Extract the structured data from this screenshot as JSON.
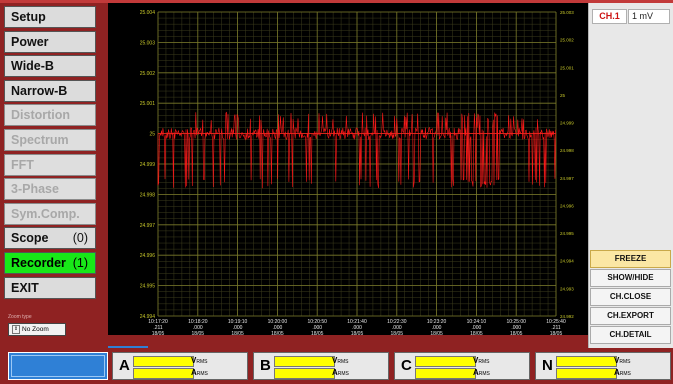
{
  "menu": [
    {
      "label": "Setup",
      "count": "",
      "state": "normal"
    },
    {
      "label": "Power",
      "count": "",
      "state": "normal"
    },
    {
      "label": "Wide-B",
      "count": "",
      "state": "normal"
    },
    {
      "label": "Narrow-B",
      "count": "",
      "state": "normal"
    },
    {
      "label": "Distortion",
      "count": "",
      "state": "disabled"
    },
    {
      "label": "Spectrum",
      "count": "",
      "state": "disabled"
    },
    {
      "label": "FFT",
      "count": "",
      "state": "disabled"
    },
    {
      "label": "3-Phase",
      "count": "",
      "state": "disabled"
    },
    {
      "label": "Sym.Comp.",
      "count": "",
      "state": "disabled"
    },
    {
      "label": "Scope",
      "count": "(0)",
      "state": "normal"
    },
    {
      "label": "Recorder",
      "count": "(1)",
      "state": "active"
    },
    {
      "label": "EXIT",
      "count": "",
      "state": "normal"
    }
  ],
  "zoom": {
    "label": "Zoom type",
    "value": "No Zoom"
  },
  "channel": {
    "tag": "CH.1",
    "scale": "1 mV"
  },
  "right_buttons": [
    {
      "label": "FREEZE",
      "highlight": true
    },
    {
      "label": "SHOW/HIDE",
      "highlight": false
    },
    {
      "label": "CH.CLOSE",
      "highlight": false
    },
    {
      "label": "CH.EXPORT",
      "highlight": false
    },
    {
      "label": "CH.DETAIL",
      "highlight": false
    }
  ],
  "phases": [
    {
      "letter": "A",
      "v": "V",
      "v_sub": "RMS",
      "a": "A",
      "a_sub": "RMS"
    },
    {
      "letter": "B",
      "v": "V",
      "v_sub": "RMS",
      "a": "A",
      "a_sub": "RMS"
    },
    {
      "letter": "C",
      "v": "V",
      "v_sub": "RMS",
      "a": "A",
      "a_sub": "RMS"
    },
    {
      "letter": "N",
      "v": "V",
      "v_sub": "RMS",
      "a": "A",
      "a_sub": "RMS"
    }
  ],
  "chart_data": {
    "type": "line",
    "title": "",
    "y_ticks": [
      "25.004",
      "25.003",
      "25.002",
      "25.001",
      "25",
      "24.999",
      "24.998",
      "24.997",
      "24.996",
      "24.995",
      "24.994"
    ],
    "y_ticks_right": [
      "25.003",
      "25.002",
      "25.001",
      "25",
      "24.999",
      "24.998",
      "24.997",
      "24.996",
      "24.995",
      "24.994",
      "24.993",
      "24.992"
    ],
    "ylim": [
      24.994,
      25.004
    ],
    "x_ticks": [
      {
        "time": "10:17:20",
        "ms": ".211",
        "date": "18/05"
      },
      {
        "time": "10:18:20",
        "ms": ".000",
        "date": "18/05"
      },
      {
        "time": "10:19:10",
        "ms": ".000",
        "date": "18/05"
      },
      {
        "time": "10:20:00",
        "ms": ".000",
        "date": "18/05"
      },
      {
        "time": "10:20:50",
        "ms": ".000",
        "date": "18/05"
      },
      {
        "time": "10:21:40",
        "ms": ".000",
        "date": "18/05"
      },
      {
        "time": "10:22:30",
        "ms": ".000",
        "date": "18/05"
      },
      {
        "time": "10:23:20",
        "ms": ".000",
        "date": "18/05"
      },
      {
        "time": "10:24:10",
        "ms": ".000",
        "date": "18/05"
      },
      {
        "time": "10:25:00",
        "ms": ".000",
        "date": "18/05"
      },
      {
        "time": "10:25:40",
        "ms": ".211",
        "date": "18/05"
      }
    ],
    "series": [
      {
        "color": "#ff1a1a",
        "baseline": 25.0,
        "upper_envelope": 25.0007,
        "lower_envelope": 24.9982
      }
    ],
    "grid": true,
    "background": "#000000",
    "grid_color": "#7a7a2a",
    "axis_text_color": "#c8c82a"
  }
}
